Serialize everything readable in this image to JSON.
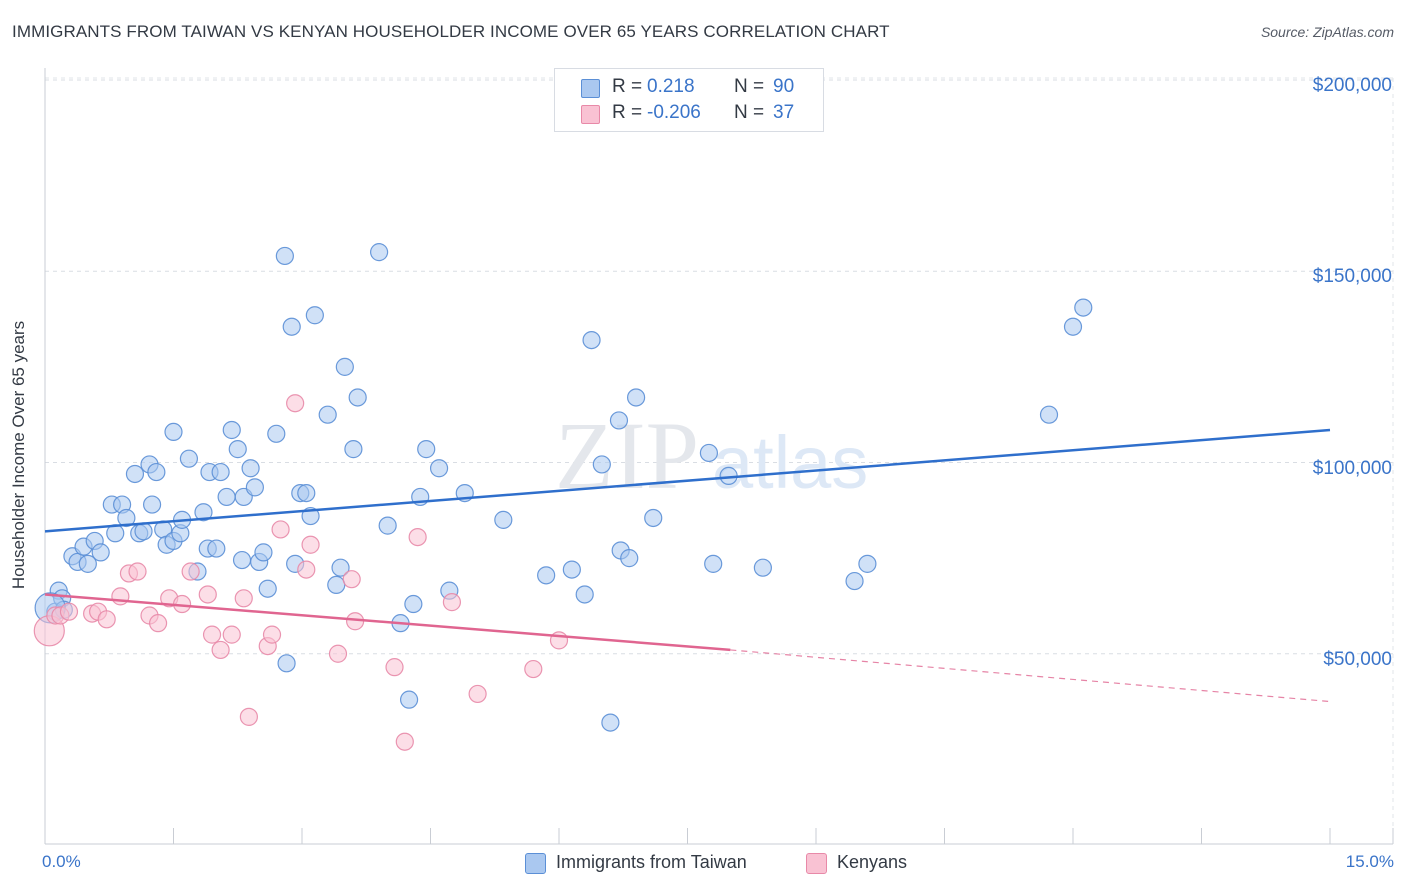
{
  "header": {
    "title": "IMMIGRANTS FROM TAIWAN VS KENYAN HOUSEHOLDER INCOME OVER 65 YEARS CORRELATION CHART",
    "source": "Source: ZipAtlas.com"
  },
  "watermark": {
    "zip": "ZIP",
    "atlas": "atlas"
  },
  "legend_top": {
    "r_label": "R =",
    "n_label": "N =",
    "rows": [
      {
        "r": "0.218",
        "n": "90",
        "fill": "#aac8f0",
        "stroke": "#5b8fd6"
      },
      {
        "r": "-0.206",
        "n": "37",
        "fill": "#f9c2d3",
        "stroke": "#e889a8"
      }
    ]
  },
  "legend_bottom": [
    {
      "label": "Immigrants from Taiwan",
      "fill": "#aac8f0",
      "stroke": "#5b8fd6"
    },
    {
      "label": "Kenyans",
      "fill": "#f9c2d3",
      "stroke": "#e889a8"
    }
  ],
  "chart_data": {
    "type": "scatter",
    "title": "IMMIGRANTS FROM TAIWAN VS KENYAN HOUSEHOLDER INCOME OVER 65 YEARS CORRELATION CHART",
    "xlabel": "",
    "ylabel": "Householder Income Over 65 years",
    "xlim": [
      0,
      15
    ],
    "ylim": [
      0,
      205000
    ],
    "x_tick_labels": [
      "0.0%",
      "15.0%"
    ],
    "y_ticks": [
      50000,
      100000,
      150000,
      200000
    ],
    "y_tick_labels": [
      "$50,000",
      "$100,000",
      "$150,000",
      "$200,000"
    ],
    "grid": true,
    "legend_position": "top-center",
    "series": [
      {
        "name": "Immigrants from Taiwan",
        "color": "#5b8fd6",
        "fill": "#aac8f0",
        "r": 0.218,
        "n": 90,
        "trend": {
          "x": [
            0,
            15
          ],
          "y": [
            82000,
            108500
          ],
          "color": "#2f6fcc"
        },
        "points": [
          [
            0.12,
            61000
          ],
          [
            0.16,
            66500
          ],
          [
            0.2,
            64500
          ],
          [
            0.22,
            61500
          ],
          [
            0.32,
            75500
          ],
          [
            0.38,
            74000
          ],
          [
            0.45,
            78000
          ],
          [
            0.5,
            73500
          ],
          [
            0.58,
            79500
          ],
          [
            0.65,
            76500
          ],
          [
            0.78,
            89000
          ],
          [
            0.82,
            81500
          ],
          [
            0.9,
            89000
          ],
          [
            0.95,
            85500
          ],
          [
            1.05,
            97000
          ],
          [
            1.1,
            81500
          ],
          [
            1.15,
            82000
          ],
          [
            1.22,
            99500
          ],
          [
            1.25,
            89000
          ],
          [
            1.3,
            97500
          ],
          [
            1.38,
            82500
          ],
          [
            1.42,
            78500
          ],
          [
            1.5,
            79500
          ],
          [
            1.5,
            108000
          ],
          [
            1.58,
            81500
          ],
          [
            1.6,
            85000
          ],
          [
            1.68,
            101000
          ],
          [
            1.78,
            71500
          ],
          [
            1.85,
            87000
          ],
          [
            1.9,
            77500
          ],
          [
            1.92,
            97500
          ],
          [
            2.0,
            77500
          ],
          [
            2.05,
            97500
          ],
          [
            2.12,
            91000
          ],
          [
            2.18,
            108500
          ],
          [
            2.25,
            103500
          ],
          [
            2.3,
            74500
          ],
          [
            2.32,
            91000
          ],
          [
            2.4,
            98500
          ],
          [
            2.45,
            93500
          ],
          [
            2.5,
            74000
          ],
          [
            2.55,
            76500
          ],
          [
            2.6,
            67000
          ],
          [
            2.7,
            107500
          ],
          [
            2.8,
            154000
          ],
          [
            2.82,
            47500
          ],
          [
            2.88,
            135500
          ],
          [
            2.92,
            73500
          ],
          [
            2.98,
            92000
          ],
          [
            3.05,
            92000
          ],
          [
            3.1,
            86000
          ],
          [
            3.15,
            138500
          ],
          [
            3.3,
            112500
          ],
          [
            3.4,
            68000
          ],
          [
            3.45,
            72500
          ],
          [
            3.5,
            125000
          ],
          [
            3.6,
            103500
          ],
          [
            3.65,
            117000
          ],
          [
            3.9,
            155000
          ],
          [
            4.0,
            83500
          ],
          [
            4.15,
            58000
          ],
          [
            4.25,
            38000
          ],
          [
            4.3,
            63000
          ],
          [
            4.38,
            91000
          ],
          [
            4.45,
            103500
          ],
          [
            4.6,
            98500
          ],
          [
            4.72,
            66500
          ],
          [
            4.9,
            92000
          ],
          [
            5.35,
            85000
          ],
          [
            5.85,
            70500
          ],
          [
            6.15,
            72000
          ],
          [
            6.3,
            65500
          ],
          [
            6.38,
            132000
          ],
          [
            6.5,
            99500
          ],
          [
            6.6,
            32000
          ],
          [
            6.7,
            111000
          ],
          [
            6.72,
            77000
          ],
          [
            6.82,
            75000
          ],
          [
            6.9,
            117000
          ],
          [
            7.1,
            85500
          ],
          [
            7.75,
            102500
          ],
          [
            7.8,
            73500
          ],
          [
            7.98,
            96500
          ],
          [
            8.38,
            72500
          ],
          [
            9.45,
            69000
          ],
          [
            9.6,
            73500
          ],
          [
            11.72,
            112500
          ],
          [
            12.0,
            135500
          ],
          [
            12.12,
            140500
          ],
          [
            0.06,
            62000
          ]
        ]
      },
      {
        "name": "Kenyans",
        "color": "#e889a8",
        "fill": "#f9c2d3",
        "r": -0.206,
        "n": 37,
        "trend": {
          "x": [
            0,
            8.0
          ],
          "y": [
            65500,
            51000
          ],
          "color": "#e06590"
        },
        "trend_dashed": {
          "x": [
            8.0,
            15
          ],
          "y": [
            51000,
            37500
          ]
        },
        "points": [
          [
            0.05,
            56000
          ],
          [
            0.12,
            60000
          ],
          [
            0.18,
            60000
          ],
          [
            0.28,
            61000
          ],
          [
            0.55,
            60500
          ],
          [
            0.62,
            61000
          ],
          [
            0.72,
            59000
          ],
          [
            0.88,
            65000
          ],
          [
            0.98,
            71000
          ],
          [
            1.08,
            71500
          ],
          [
            1.22,
            60000
          ],
          [
            1.32,
            58000
          ],
          [
            1.45,
            64500
          ],
          [
            1.6,
            63000
          ],
          [
            1.7,
            71500
          ],
          [
            1.9,
            65500
          ],
          [
            1.95,
            55000
          ],
          [
            2.05,
            51000
          ],
          [
            2.18,
            55000
          ],
          [
            2.32,
            64500
          ],
          [
            2.38,
            33500
          ],
          [
            2.6,
            52000
          ],
          [
            2.65,
            55000
          ],
          [
            2.75,
            82500
          ],
          [
            2.92,
            115500
          ],
          [
            3.05,
            72000
          ],
          [
            3.1,
            78500
          ],
          [
            3.42,
            50000
          ],
          [
            3.58,
            69500
          ],
          [
            3.62,
            58500
          ],
          [
            4.08,
            46500
          ],
          [
            4.2,
            27000
          ],
          [
            4.35,
            80500
          ],
          [
            4.75,
            63500
          ],
          [
            5.05,
            39500
          ],
          [
            5.7,
            46000
          ],
          [
            6.0,
            53500
          ]
        ]
      }
    ]
  }
}
